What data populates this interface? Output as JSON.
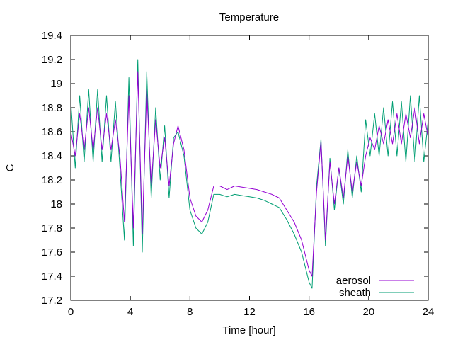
{
  "chart_data": {
    "type": "line",
    "title": "Temperature",
    "xlabel": "Time [hour]",
    "ylabel": "C",
    "xlim": [
      0,
      24
    ],
    "ylim": [
      17.2,
      19.4
    ],
    "x_ticks": [
      "0",
      "4",
      "8",
      "12",
      "16",
      "20",
      "24"
    ],
    "y_ticks": [
      "17.2",
      "17.4",
      "17.6",
      "17.8",
      "18",
      "18.2",
      "18.4",
      "18.6",
      "18.8",
      "19",
      "19.2",
      "19.4"
    ],
    "grid": false,
    "legend_position": "bottom-right",
    "series": [
      {
        "name": "aerosol",
        "color": "#9400d3",
        "x": [
          0,
          0.3,
          0.6,
          0.9,
          1.2,
          1.5,
          1.8,
          2.1,
          2.4,
          2.7,
          3.0,
          3.3,
          3.6,
          3.9,
          4.2,
          4.5,
          4.8,
          5.1,
          5.4,
          5.7,
          6.0,
          6.3,
          6.6,
          6.9,
          7.2,
          7.6,
          8.0,
          8.4,
          8.8,
          9.2,
          9.6,
          10.0,
          10.5,
          11.0,
          11.5,
          12.0,
          12.5,
          13.0,
          13.5,
          14.0,
          14.5,
          15.0,
          15.5,
          16.0,
          16.2,
          16.5,
          16.8,
          17.1,
          17.4,
          17.7,
          18.0,
          18.3,
          18.6,
          18.9,
          19.2,
          19.5,
          19.8,
          20.1,
          20.4,
          20.7,
          21.0,
          21.3,
          21.6,
          21.9,
          22.2,
          22.5,
          22.8,
          23.1,
          23.4,
          23.7,
          24.0
        ],
        "values": [
          18.6,
          18.4,
          18.75,
          18.45,
          18.8,
          18.45,
          18.8,
          18.45,
          18.75,
          18.45,
          18.7,
          18.4,
          17.85,
          18.9,
          17.8,
          19.1,
          17.75,
          18.95,
          18.15,
          18.7,
          18.3,
          18.55,
          18.15,
          18.5,
          18.65,
          18.45,
          18.05,
          17.9,
          17.85,
          17.95,
          18.15,
          18.15,
          18.12,
          18.15,
          18.14,
          18.13,
          18.12,
          18.1,
          18.08,
          18.05,
          17.95,
          17.85,
          17.7,
          17.45,
          17.4,
          18.1,
          18.52,
          17.7,
          18.35,
          18.0,
          18.3,
          18.05,
          18.4,
          18.1,
          18.35,
          18.15,
          18.4,
          18.55,
          18.45,
          18.65,
          18.5,
          18.7,
          18.5,
          18.75,
          18.5,
          18.75,
          18.55,
          18.8,
          18.5,
          18.75,
          18.55
        ]
      },
      {
        "name": "sheath",
        "color": "#009e73",
        "x": [
          0,
          0.3,
          0.6,
          0.9,
          1.2,
          1.5,
          1.8,
          2.1,
          2.4,
          2.7,
          3.0,
          3.3,
          3.6,
          3.9,
          4.2,
          4.5,
          4.8,
          5.1,
          5.4,
          5.7,
          6.0,
          6.3,
          6.6,
          6.9,
          7.2,
          7.6,
          8.0,
          8.4,
          8.8,
          9.2,
          9.6,
          10.0,
          10.5,
          11.0,
          11.5,
          12.0,
          12.5,
          13.0,
          13.5,
          14.0,
          14.5,
          15.0,
          15.5,
          16.0,
          16.2,
          16.5,
          16.8,
          17.1,
          17.4,
          17.7,
          18.0,
          18.3,
          18.6,
          18.9,
          19.2,
          19.5,
          19.8,
          20.1,
          20.4,
          20.7,
          21.0,
          21.3,
          21.6,
          21.9,
          22.2,
          22.5,
          22.8,
          23.1,
          23.4,
          23.7,
          24.0
        ],
        "values": [
          18.85,
          18.3,
          18.9,
          18.35,
          18.95,
          18.35,
          18.95,
          18.35,
          18.9,
          18.35,
          18.85,
          18.3,
          17.7,
          19.05,
          17.65,
          19.2,
          17.6,
          19.1,
          18.05,
          18.8,
          18.2,
          18.65,
          18.05,
          18.55,
          18.6,
          18.4,
          17.95,
          17.8,
          17.75,
          17.85,
          18.08,
          18.08,
          18.06,
          18.08,
          18.07,
          18.06,
          18.05,
          18.03,
          18.0,
          17.97,
          17.87,
          17.75,
          17.6,
          17.35,
          17.3,
          18.15,
          18.54,
          17.65,
          18.38,
          17.95,
          18.3,
          18.0,
          18.45,
          18.05,
          18.4,
          18.1,
          18.7,
          18.4,
          18.75,
          18.4,
          18.8,
          18.4,
          18.85,
          18.4,
          18.85,
          18.35,
          18.9,
          18.35,
          18.9,
          18.35,
          18.7
        ]
      }
    ]
  }
}
